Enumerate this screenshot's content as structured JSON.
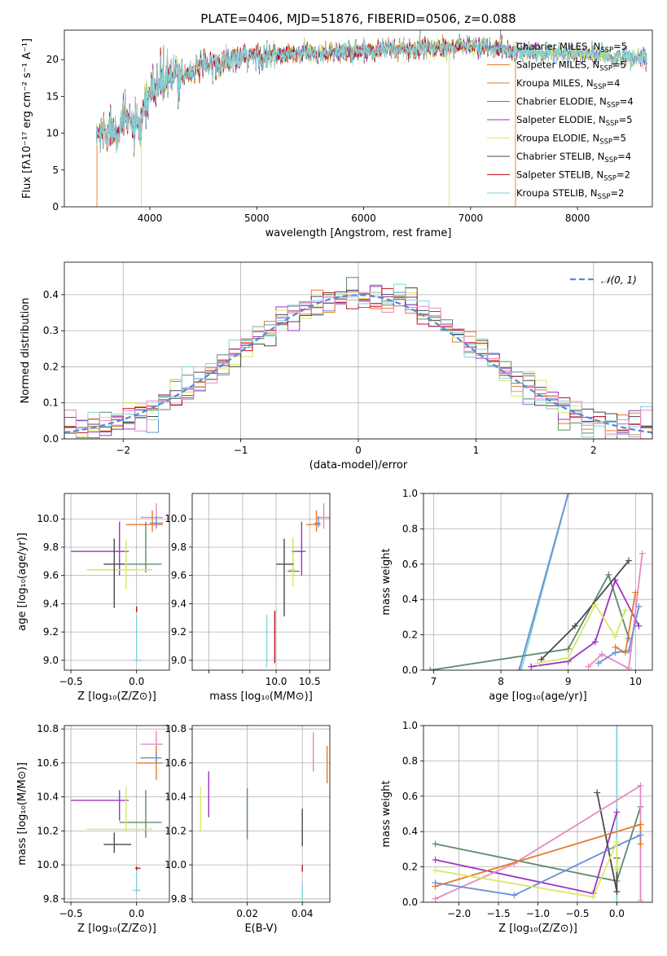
{
  "title": "PLATE=0406, MJD=51876, FIBERID=0506, z=0.088",
  "chart_data": [
    {
      "id": "spectrum",
      "type": "line",
      "xlabel": "wavelength [Angstrom, rest frame]",
      "ylabel": "Flux [fλ10⁻¹⁷ erg cm⁻² s⁻¹ A⁻¹]",
      "xlim": [
        3200,
        8700
      ],
      "ylim": [
        0,
        24
      ],
      "xticks": [
        4000,
        5000,
        6000,
        7000,
        8000
      ],
      "yticks": [
        0,
        5,
        10,
        15,
        20
      ],
      "grid": false,
      "legend_position": "right",
      "continuum": {
        "x": [
          3500,
          3600,
          3700,
          3800,
          3900,
          4000,
          4100,
          4200,
          4400,
          4600,
          4800,
          5000,
          5200,
          5400,
          5600,
          5800,
          6000,
          6200,
          6400,
          6600,
          6800,
          7000,
          7200,
          7400,
          7600,
          7800,
          8000,
          8200,
          8400,
          8650
        ],
        "y": [
          9.5,
          10.5,
          11,
          12,
          10,
          15.5,
          17,
          17.5,
          18.5,
          19.5,
          20,
          20.5,
          20.5,
          20.8,
          21,
          21,
          21.2,
          21.5,
          21.3,
          21.5,
          21.8,
          21.8,
          21.5,
          21.2,
          21,
          20.8,
          20.8,
          20.5,
          20.2,
          20
        ]
      },
      "series": [
        {
          "name": "Chabrier MILES, N$_{SSP}$=5",
          "label_main": "Chabrier MILES, N",
          "label_sub": "SSP",
          "label_end": "=5",
          "color": "#6a8fd6"
        },
        {
          "name": "Salpeter MILES, N$_{SSP}$=5",
          "label_main": "Salpeter MILES, N",
          "label_sub": "SSP",
          "label_end": "=5",
          "color": "#e87a2a"
        },
        {
          "name": "Kroupa MILES, N$_{SSP}$=4",
          "label_main": "Kroupa MILES, N",
          "label_sub": "SSP",
          "label_end": "=4",
          "color": "#e87a2a"
        },
        {
          "name": "Chabrier ELODIE, N$_{SSP}$=4",
          "label_main": "Chabrier ELODIE, N",
          "label_sub": "SSP",
          "label_end": "=4",
          "color": "#5f8a6a"
        },
        {
          "name": "Salpeter ELODIE, N$_{SSP}$=5",
          "label_main": "Salpeter ELODIE, N",
          "label_sub": "SSP",
          "label_end": "=5",
          "color": "#9a35c0"
        },
        {
          "name": "Kroupa ELODIE, N$_{SSP}$=5",
          "label_main": "Kroupa ELODIE, N",
          "label_sub": "SSP",
          "label_end": "=5",
          "color": "#d9e866"
        },
        {
          "name": "Chabrier STELIB, N$_{SSP}$=4",
          "label_main": "Chabrier STELIB, N",
          "label_sub": "SSP",
          "label_end": "=4",
          "color": "#4a4a4a"
        },
        {
          "name": "Salpeter STELIB, N$_{SSP}$=2",
          "label_main": "Salpeter STELIB, N",
          "label_sub": "SSP",
          "label_end": "=2",
          "color": "#c0141c"
        },
        {
          "name": "Kroupa STELIB, N$_{SSP}$=2",
          "label_main": "Kroupa STELIB, N",
          "label_sub": "SSP",
          "label_end": "=2",
          "color": "#82d3dc"
        }
      ]
    },
    {
      "id": "residuals",
      "type": "histogram",
      "xlabel": "(data-model)/error",
      "ylabel": "Normed distribution",
      "xlim": [
        -2.5,
        2.5
      ],
      "ylim": [
        0,
        0.49
      ],
      "xticks": [
        -2,
        -1,
        0,
        1,
        2
      ],
      "yticks": [
        0.0,
        0.1,
        0.2,
        0.3,
        0.4
      ],
      "grid": true,
      "legend": "𝒩(0, 1)",
      "legend_position": "top-right",
      "bin_width": 0.1,
      "colors": [
        "#6a8fd6",
        "#e87a2a",
        "#5f8a6a",
        "#9a35c0",
        "#d9e866",
        "#4a4a4a",
        "#c0141c",
        "#82d3dc",
        "#e58ac1"
      ]
    },
    {
      "id": "age-vs-Z",
      "type": "errorbar",
      "xlabel": "Z [log₁₀(Z/Z⊙)]",
      "ylabel": "age  [log₁₀(age/yr)]",
      "xlim": [
        -0.55,
        0.25
      ],
      "ylim": [
        8.93,
        10.18
      ],
      "xticks": [
        -0.5,
        0.0
      ],
      "yticks": [
        9.0,
        9.2,
        9.4,
        9.6,
        9.8,
        10.0
      ],
      "grid": true,
      "points": [
        {
          "x": 0.15,
          "y": 10.01,
          "xerr": [
            0.12,
            0.05
          ],
          "yerr": [
            0.08,
            0.1
          ],
          "color": "#e58ac1"
        },
        {
          "x": 0.12,
          "y": 9.96,
          "xerr": [
            0.2,
            0.08
          ],
          "yerr": [
            0.05,
            0.1
          ],
          "color": "#e87a2a"
        },
        {
          "x": 0.15,
          "y": 9.97,
          "xerr": [
            0.05,
            0.05
          ],
          "yerr": [
            0.03,
            0.05
          ],
          "color": "#6a8fd6"
        },
        {
          "x": 0.07,
          "y": 9.68,
          "xerr": [
            0.2,
            0.12
          ],
          "yerr": [
            0.06,
            0.3
          ],
          "color": "#5f8a6a"
        },
        {
          "x": -0.13,
          "y": 9.77,
          "xerr": [
            0.37,
            0.07
          ],
          "yerr": [
            0.17,
            0.21
          ],
          "color": "#9a35c0"
        },
        {
          "x": -0.08,
          "y": 9.64,
          "xerr": [
            0.3,
            0.2
          ],
          "yerr": [
            0.14,
            0.21
          ],
          "color": "#d9e866"
        },
        {
          "x": -0.17,
          "y": 9.68,
          "xerr": [
            0.08,
            0.08
          ],
          "yerr": [
            0.31,
            0.18
          ],
          "color": "#4a4a4a"
        },
        {
          "x": 0.0,
          "y": 9.36,
          "xerr": [
            0.005,
            0.005
          ],
          "yerr": [
            0.02,
            0.02
          ],
          "color": "#c0141c"
        },
        {
          "x": 0.0,
          "y": 9.0,
          "xerr": [
            0.02,
            0.04
          ],
          "yerr": [
            0.01,
            0.31
          ],
          "color": "#82d3dc"
        }
      ]
    },
    {
      "id": "age-vs-mass",
      "type": "errorbar",
      "xlabel": "mass [log₁₀(M/M⊙)]",
      "ylabel": "",
      "xlim": [
        8.75,
        10.8
      ],
      "ylim": [
        8.93,
        10.18
      ],
      "xticks": [
        9.0,
        9.5,
        10.0,
        10.5
      ],
      "yticks": [
        9.0,
        9.2,
        9.4,
        9.6,
        9.8,
        10.0
      ],
      "xticklabels": [
        "",
        "",
        "10.0",
        "10.5"
      ],
      "grid": true,
      "points": [
        {
          "x": 10.71,
          "y": 10.01,
          "xerr": [
            0.12,
            0.1
          ],
          "yerr": [
            0.08,
            0.1
          ],
          "color": "#e58ac1"
        },
        {
          "x": 10.6,
          "y": 9.96,
          "xerr": [
            0.15,
            0.06
          ],
          "yerr": [
            0.05,
            0.1
          ],
          "color": "#e87a2a"
        },
        {
          "x": 10.63,
          "y": 9.97,
          "xerr": [
            0.06,
            0.03
          ],
          "yerr": [
            0.03,
            0.05
          ],
          "color": "#6a8fd6"
        },
        {
          "x": 10.25,
          "y": 9.63,
          "xerr": [
            0.08,
            0.1
          ],
          "yerr": [
            0.04,
            0.22
          ],
          "color": "#5f8a6a"
        },
        {
          "x": 10.38,
          "y": 9.77,
          "xerr": [
            0.15,
            0.06
          ],
          "yerr": [
            0.17,
            0.21
          ],
          "color": "#9a35c0"
        },
        {
          "x": 10.25,
          "y": 9.64,
          "xerr": [
            0.06,
            0.03
          ],
          "yerr": [
            0.12,
            0.23
          ],
          "color": "#d9e866"
        },
        {
          "x": 10.12,
          "y": 9.68,
          "xerr": [
            0.12,
            0.14
          ],
          "yerr": [
            0.37,
            0.18
          ],
          "color": "#4a4a4a"
        },
        {
          "x": 9.98,
          "y": 9.2,
          "xerr": [
            0.0,
            0.0
          ],
          "yerr": [
            0.22,
            0.15
          ],
          "color": "#c0141c"
        },
        {
          "x": 9.86,
          "y": 9.0,
          "xerr": [
            0.01,
            0.01
          ],
          "yerr": [
            0.05,
            0.32
          ],
          "color": "#82d3dc"
        }
      ]
    },
    {
      "id": "weight-vs-age",
      "type": "line",
      "xlabel": "age  [log₁₀(age/yr)]",
      "ylabel": "mass weight",
      "xlim": [
        6.85,
        10.25
      ],
      "ylim": [
        0,
        1.0
      ],
      "xticks": [
        7,
        8,
        9,
        10
      ],
      "yticks": [
        0.0,
        0.2,
        0.4,
        0.6,
        0.8,
        1.0
      ],
      "grid": true,
      "series": [
        {
          "color": "#82d3dc",
          "x": [
            8.3,
            9.0
          ],
          "y": [
            0.0,
            1.0
          ]
        },
        {
          "color": "#6a8fd6",
          "x": [
            8.27,
            9.0
          ],
          "y": [
            0.0,
            1.0
          ]
        },
        {
          "color": "#5f8a6a",
          "x": [
            6.95,
            9.0,
            9.6,
            9.9
          ],
          "y": [
            0.0,
            0.12,
            0.54,
            0.18
          ]
        },
        {
          "color": "#4a4a4a",
          "x": [
            8.6,
            9.1,
            9.9
          ],
          "y": [
            0.06,
            0.25,
            0.62
          ]
        },
        {
          "color": "#9a35c0",
          "x": [
            8.45,
            9.0,
            9.4,
            9.7,
            10.05
          ],
          "y": [
            0.02,
            0.05,
            0.16,
            0.51,
            0.25
          ]
        },
        {
          "color": "#d9e866",
          "x": [
            8.55,
            9.0,
            9.4,
            9.7,
            9.85
          ],
          "y": [
            0.04,
            0.07,
            0.37,
            0.19,
            0.34
          ]
        },
        {
          "color": "#e58ac1",
          "x": [
            9.3,
            9.5,
            9.9,
            10.1
          ],
          "y": [
            0.02,
            0.09,
            0.01,
            0.66
          ]
        },
        {
          "color": "#e87a2a",
          "x": [
            9.7,
            9.85,
            10.0
          ],
          "y": [
            0.13,
            0.1,
            0.44
          ]
        },
        {
          "color": "#6a8fd6",
          "x": [
            9.45,
            9.7,
            9.9,
            10.05
          ],
          "y": [
            0.04,
            0.1,
            0.11,
            0.36
          ]
        }
      ]
    },
    {
      "id": "mass-vs-Z",
      "type": "errorbar",
      "xlabel": "Z [log₁₀(Z/Z⊙)]",
      "ylabel": "mass [log₁₀(M/M⊙)]",
      "xlim": [
        -0.55,
        0.25
      ],
      "ylim": [
        9.78,
        10.82
      ],
      "xticks": [
        -0.5,
        0.0
      ],
      "yticks": [
        9.8,
        10.0,
        10.2,
        10.4,
        10.6,
        10.8
      ],
      "grid": true,
      "points": [
        {
          "x": 0.15,
          "y": 10.71,
          "xerr": [
            0.12,
            0.05
          ],
          "yerr": [
            0.06,
            0.08
          ],
          "color": "#e58ac1"
        },
        {
          "x": 0.15,
          "y": 10.6,
          "xerr": [
            0.15,
            0.05
          ],
          "yerr": [
            0.1,
            0.1
          ],
          "color": "#e87a2a"
        },
        {
          "x": 0.15,
          "y": 10.63,
          "xerr": [
            0.12,
            0.04
          ],
          "yerr": [
            0.03,
            0.03
          ],
          "color": "#6a8fd6"
        },
        {
          "x": 0.07,
          "y": 10.25,
          "xerr": [
            0.2,
            0.12
          ],
          "yerr": [
            0.09,
            0.19
          ],
          "color": "#5f8a6a"
        },
        {
          "x": -0.13,
          "y": 10.38,
          "xerr": [
            0.37,
            0.07
          ],
          "yerr": [
            0.12,
            0.06
          ],
          "color": "#9a35c0"
        },
        {
          "x": -0.08,
          "y": 10.21,
          "xerr": [
            0.3,
            0.2
          ],
          "yerr": [
            0.02,
            0.25
          ],
          "color": "#d9e866"
        },
        {
          "x": -0.17,
          "y": 10.12,
          "xerr": [
            0.08,
            0.13
          ],
          "yerr": [
            0.05,
            0.07
          ],
          "color": "#4a4a4a"
        },
        {
          "x": 0.0,
          "y": 9.98,
          "xerr": [
            0.01,
            0.03
          ],
          "yerr": [
            0.02,
            0.01
          ],
          "color": "#c0141c"
        },
        {
          "x": 0.0,
          "y": 9.85,
          "xerr": [
            0.03,
            0.03
          ],
          "yerr": [
            0.01,
            0.12
          ],
          "color": "#82d3dc"
        }
      ]
    },
    {
      "id": "mass-vs-EBV",
      "type": "errorbar",
      "xlabel": "E(B-V)",
      "ylabel": "",
      "xlim": [
        0.0,
        0.05
      ],
      "ylim": [
        9.78,
        10.82
      ],
      "xticks": [
        0.02,
        0.04
      ],
      "yticks": [
        9.8,
        10.0,
        10.2,
        10.4,
        10.6,
        10.8
      ],
      "grid": true,
      "points": [
        {
          "x": 0.044,
          "y": 10.65,
          "xerr": [
            0,
            0
          ],
          "yerr": [
            0.1,
            0.13
          ],
          "color": "#e58ac1"
        },
        {
          "x": 0.049,
          "y": 10.6,
          "xerr": [
            0,
            0
          ],
          "yerr": [
            0.12,
            0.1
          ],
          "color": "#e87a2a"
        },
        {
          "x": 0.006,
          "y": 10.41,
          "xerr": [
            0,
            0
          ],
          "yerr": [
            0.13,
            0.14
          ],
          "color": "#9a35c0"
        },
        {
          "x": 0.003,
          "y": 10.32,
          "xerr": [
            0,
            0
          ],
          "yerr": [
            0.13,
            0.14
          ],
          "color": "#d9e866"
        },
        {
          "x": 0.02,
          "y": 10.3,
          "xerr": [
            0,
            0
          ],
          "yerr": [
            0.15,
            0.15
          ],
          "color": "#5f8a6a"
        },
        {
          "x": 0.04,
          "y": 10.18,
          "xerr": [
            0,
            0
          ],
          "yerr": [
            0.07,
            0.15
          ],
          "color": "#4a4a4a"
        },
        {
          "x": 0.04,
          "y": 9.98,
          "xerr": [
            0,
            0
          ],
          "yerr": [
            0.02,
            0.02
          ],
          "color": "#c0141c"
        },
        {
          "x": 0.04,
          "y": 9.85,
          "xerr": [
            0,
            0
          ],
          "yerr": [
            0.07,
            0.04
          ],
          "color": "#82d3dc"
        }
      ]
    },
    {
      "id": "weight-vs-Z",
      "type": "line",
      "xlabel": "Z [log₁₀(Z/Z⊙)]",
      "ylabel": "mass weight",
      "xlim": [
        -2.45,
        0.45
      ],
      "ylim": [
        0,
        1.0
      ],
      "xticks": [
        -2.0,
        -1.5,
        -1.0,
        -0.5,
        0.0
      ],
      "yticks": [
        0.0,
        0.2,
        0.4,
        0.6,
        0.8,
        1.0
      ],
      "grid": true,
      "series": [
        {
          "color": "#82d3dc",
          "x": [
            0.0,
            0.0
          ],
          "y": [
            0.0,
            1.0
          ]
        },
        {
          "color": "#5f8a6a",
          "x": [
            -2.3,
            0.0,
            0.3
          ],
          "y": [
            0.33,
            0.12,
            0.54
          ]
        },
        {
          "color": "#9a35c0",
          "x": [
            -2.3,
            -0.3,
            0.0
          ],
          "y": [
            0.24,
            0.05,
            0.51
          ]
        },
        {
          "color": "#4a4a4a",
          "x": [
            -0.25,
            0.0,
            0.0
          ],
          "y": [
            0.62,
            0.06,
            0.25
          ]
        },
        {
          "color": "#e58ac1",
          "x": [
            -2.3,
            -1.3,
            0.3,
            0.3
          ],
          "y": [
            0.02,
            0.22,
            0.66,
            0.01
          ]
        },
        {
          "color": "#e87a2a",
          "x": [
            -2.3,
            0.3,
            0.3
          ],
          "y": [
            0.09,
            0.44,
            0.33
          ]
        },
        {
          "color": "#6a8fd6",
          "x": [
            -2.3,
            -1.3,
            0.0,
            0.3
          ],
          "y": [
            0.11,
            0.04,
            0.32,
            0.38
          ]
        },
        {
          "color": "#d9e866",
          "x": [
            -2.3,
            -0.3,
            0.0,
            0.0
          ],
          "y": [
            0.18,
            0.03,
            0.34,
            0.19
          ]
        }
      ]
    }
  ]
}
